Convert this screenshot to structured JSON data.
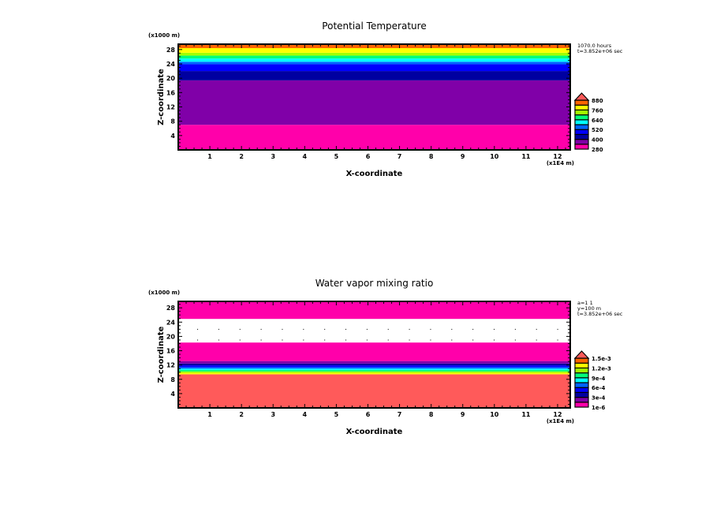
{
  "palette": [
    "#ff00aa",
    "#8000a8",
    "#0000a0",
    "#0000ff",
    "#0064ff",
    "#00ffff",
    "#00ff78",
    "#a0ff00",
    "#ffff00",
    "#ff6400"
  ],
  "overflow_color": "#ff5a5a",
  "chart_data": [
    {
      "type": "heatmap",
      "title": "Potential Temperature",
      "xlabel": "X-coordinate",
      "ylabel": "Z-coordinate",
      "x_unit": "(x1E4 m)",
      "y_unit": "(x1000 m)",
      "xlim": [
        0,
        12.4
      ],
      "ylim": [
        0,
        29.5
      ],
      "xticks": [
        "1",
        "2",
        "3",
        "4",
        "5",
        "6",
        "7",
        "8",
        "9",
        "10",
        "11",
        "12"
      ],
      "yticks": [
        "4",
        "8",
        "12",
        "16",
        "20",
        "24",
        "28"
      ],
      "info": [
        "1070.0 hours",
        "t=3.852e+06 sec"
      ],
      "colorbar_labels": [
        "280",
        "400",
        "520",
        "640",
        "760",
        "880"
      ],
      "bands": [
        {
          "z0": 0,
          "z1": 7.0,
          "level": 0
        },
        {
          "z0": 7.0,
          "z1": 19.4,
          "level": 1
        },
        {
          "z0": 19.4,
          "z1": 22.0,
          "level": 2
        },
        {
          "z0": 22.0,
          "z1": 23.9,
          "level": 3
        },
        {
          "z0": 23.9,
          "z1": 24.6,
          "level": 4
        },
        {
          "z0": 24.6,
          "z1": 25.5,
          "level": 5
        },
        {
          "z0": 25.5,
          "z1": 26.3,
          "level": 6
        },
        {
          "z0": 26.3,
          "z1": 27.1,
          "level": 7
        },
        {
          "z0": 27.1,
          "z1": 28.4,
          "level": 8
        },
        {
          "z0": 28.4,
          "z1": 29.5,
          "level": 9
        }
      ]
    },
    {
      "type": "heatmap",
      "title": "Water vapor mixing ratio",
      "xlabel": "X-coordinate",
      "ylabel": "Z-coordinate",
      "x_unit": "(x1E4 m)",
      "y_unit": "(x1000 m)",
      "xlim": [
        0,
        12.4
      ],
      "ylim": [
        0,
        29.8
      ],
      "xticks": [
        "1",
        "2",
        "3",
        "4",
        "5",
        "6",
        "7",
        "8",
        "9",
        "10",
        "11",
        "12"
      ],
      "yticks": [
        "4",
        "8",
        "12",
        "16",
        "20",
        "24",
        "28"
      ],
      "info": [
        "a=1 1",
        "y=100 m",
        "t=3.852e+06 sec"
      ],
      "colorbar_labels": [
        "1e-6",
        "3e-4",
        "6e-4",
        "9e-4",
        "1.2e-3",
        "1.5e-3"
      ],
      "bands": [
        {
          "z0": 0,
          "z1": 9.4,
          "level": 10
        },
        {
          "z0": 9.4,
          "z1": 9.8,
          "level": 8
        },
        {
          "z0": 9.8,
          "z1": 10.2,
          "level": 7
        },
        {
          "z0": 10.2,
          "z1": 10.6,
          "level": 6
        },
        {
          "z0": 10.6,
          "z1": 11.0,
          "level": 5
        },
        {
          "z0": 11.0,
          "z1": 11.4,
          "level": 4
        },
        {
          "z0": 11.4,
          "z1": 11.9,
          "level": 3
        },
        {
          "z0": 11.9,
          "z1": 12.4,
          "level": 2
        },
        {
          "z0": 12.4,
          "z1": 13.1,
          "level": 1
        },
        {
          "z0": 13.1,
          "z1": 18.3,
          "level": 0
        },
        {
          "z0": 18.3,
          "z1": 24.9,
          "level": -1
        },
        {
          "z0": 24.9,
          "z1": 29.8,
          "level": 0
        }
      ]
    }
  ]
}
